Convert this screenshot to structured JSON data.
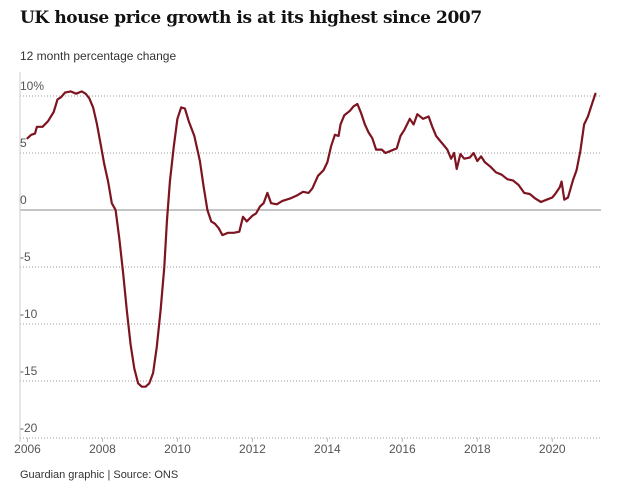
{
  "header": {
    "title": "UK house price growth is at its highest since 2007",
    "subtitle": "12 month percentage change"
  },
  "footer": {
    "source": "Guardian graphic | Source: ONS"
  },
  "chart_data": {
    "type": "line",
    "title": "UK house price growth is at its highest since 2007",
    "ylabel": "12 month percentage change",
    "xlim": [
      2005.8,
      2021.3
    ],
    "ylim": [
      -20,
      10
    ],
    "grid": true,
    "y_ticks": [
      {
        "value": 10,
        "label": "10%"
      },
      {
        "value": 5,
        "label": "5"
      },
      {
        "value": 0,
        "label": "0"
      },
      {
        "value": -5,
        "label": "-5"
      },
      {
        "value": -10,
        "label": "-10"
      },
      {
        "value": -15,
        "label": "-15"
      },
      {
        "value": -20,
        "label": "-20"
      }
    ],
    "x_ticks": [
      {
        "value": 2006,
        "label": "2006"
      },
      {
        "value": 2008,
        "label": "2008"
      },
      {
        "value": 2010,
        "label": "2010"
      },
      {
        "value": 2012,
        "label": "2012"
      },
      {
        "value": 2014,
        "label": "2014"
      },
      {
        "value": 2016,
        "label": "2016"
      },
      {
        "value": 2018,
        "label": "2018"
      },
      {
        "value": 2020,
        "label": "2020"
      }
    ],
    "colors": {
      "line": "#7d1420",
      "grid": "#999999",
      "zero": "#8a8a8a",
      "axis": "#cccccc"
    },
    "series": [
      {
        "points": [
          [
            2006.0,
            6.3
          ],
          [
            2006.1,
            6.6
          ],
          [
            2006.2,
            6.7
          ],
          [
            2006.25,
            7.3
          ],
          [
            2006.4,
            7.3
          ],
          [
            2006.55,
            7.8
          ],
          [
            2006.7,
            8.6
          ],
          [
            2006.8,
            9.7
          ],
          [
            2006.9,
            9.9
          ],
          [
            2007.0,
            10.3
          ],
          [
            2007.15,
            10.4
          ],
          [
            2007.3,
            10.2
          ],
          [
            2007.45,
            10.4
          ],
          [
            2007.55,
            10.2
          ],
          [
            2007.65,
            9.8
          ],
          [
            2007.75,
            9.0
          ],
          [
            2007.85,
            7.6
          ],
          [
            2007.95,
            5.8
          ],
          [
            2008.05,
            4.0
          ],
          [
            2008.15,
            2.5
          ],
          [
            2008.25,
            0.6
          ],
          [
            2008.35,
            0.0
          ],
          [
            2008.45,
            -2.5
          ],
          [
            2008.55,
            -5.5
          ],
          [
            2008.65,
            -8.8
          ],
          [
            2008.75,
            -11.8
          ],
          [
            2008.85,
            -13.9
          ],
          [
            2008.95,
            -15.2
          ],
          [
            2009.05,
            -15.5
          ],
          [
            2009.15,
            -15.5
          ],
          [
            2009.25,
            -15.2
          ],
          [
            2009.35,
            -14.3
          ],
          [
            2009.45,
            -12.0
          ],
          [
            2009.55,
            -8.8
          ],
          [
            2009.65,
            -5.0
          ],
          [
            2009.72,
            -1.0
          ],
          [
            2009.8,
            2.5
          ],
          [
            2009.9,
            5.5
          ],
          [
            2010.0,
            8.0
          ],
          [
            2010.1,
            9.0
          ],
          [
            2010.2,
            8.9
          ],
          [
            2010.3,
            7.8
          ],
          [
            2010.45,
            6.5
          ],
          [
            2010.6,
            4.3
          ],
          [
            2010.7,
            2.0
          ],
          [
            2010.8,
            0.0
          ],
          [
            2010.9,
            -1.0
          ],
          [
            2011.0,
            -1.2
          ],
          [
            2011.1,
            -1.6
          ],
          [
            2011.2,
            -2.2
          ],
          [
            2011.35,
            -2.0
          ],
          [
            2011.5,
            -2.0
          ],
          [
            2011.65,
            -1.9
          ],
          [
            2011.75,
            -0.6
          ],
          [
            2011.85,
            -1.0
          ],
          [
            2012.0,
            -0.5
          ],
          [
            2012.1,
            -0.3
          ],
          [
            2012.2,
            0.3
          ],
          [
            2012.3,
            0.6
          ],
          [
            2012.4,
            1.5
          ],
          [
            2012.5,
            0.6
          ],
          [
            2012.65,
            0.5
          ],
          [
            2012.8,
            0.8
          ],
          [
            2013.0,
            1.0
          ],
          [
            2013.2,
            1.3
          ],
          [
            2013.35,
            1.6
          ],
          [
            2013.5,
            1.5
          ],
          [
            2013.6,
            1.9
          ],
          [
            2013.75,
            3.0
          ],
          [
            2013.9,
            3.5
          ],
          [
            2014.0,
            4.2
          ],
          [
            2014.1,
            5.6
          ],
          [
            2014.2,
            6.6
          ],
          [
            2014.3,
            6.5
          ],
          [
            2014.35,
            7.5
          ],
          [
            2014.45,
            8.3
          ],
          [
            2014.6,
            8.7
          ],
          [
            2014.7,
            9.1
          ],
          [
            2014.8,
            9.3
          ],
          [
            2014.9,
            8.5
          ],
          [
            2015.0,
            7.5
          ],
          [
            2015.1,
            6.8
          ],
          [
            2015.2,
            6.3
          ],
          [
            2015.3,
            5.3
          ],
          [
            2015.45,
            5.3
          ],
          [
            2015.55,
            5.0
          ],
          [
            2015.7,
            5.2
          ],
          [
            2015.85,
            5.4
          ],
          [
            2015.95,
            6.5
          ],
          [
            2016.05,
            7.0
          ],
          [
            2016.2,
            8.0
          ],
          [
            2016.3,
            7.5
          ],
          [
            2016.4,
            8.4
          ],
          [
            2016.55,
            8.0
          ],
          [
            2016.7,
            8.2
          ],
          [
            2016.8,
            7.3
          ],
          [
            2016.9,
            6.5
          ],
          [
            2017.0,
            6.1
          ],
          [
            2017.1,
            5.7
          ],
          [
            2017.2,
            5.3
          ],
          [
            2017.3,
            4.5
          ],
          [
            2017.38,
            5.0
          ],
          [
            2017.45,
            3.6
          ],
          [
            2017.55,
            4.9
          ],
          [
            2017.65,
            4.5
          ],
          [
            2017.8,
            4.6
          ],
          [
            2017.9,
            5.0
          ],
          [
            2018.0,
            4.3
          ],
          [
            2018.1,
            4.7
          ],
          [
            2018.2,
            4.2
          ],
          [
            2018.35,
            3.8
          ],
          [
            2018.5,
            3.3
          ],
          [
            2018.65,
            3.1
          ],
          [
            2018.8,
            2.7
          ],
          [
            2018.95,
            2.6
          ],
          [
            2019.1,
            2.2
          ],
          [
            2019.25,
            1.5
          ],
          [
            2019.4,
            1.4
          ],
          [
            2019.55,
            1.0
          ],
          [
            2019.7,
            0.7
          ],
          [
            2019.85,
            0.9
          ],
          [
            2020.0,
            1.1
          ],
          [
            2020.1,
            1.5
          ],
          [
            2020.2,
            2.0
          ],
          [
            2020.25,
            2.5
          ],
          [
            2020.32,
            0.9
          ],
          [
            2020.42,
            1.1
          ],
          [
            2020.55,
            2.6
          ],
          [
            2020.65,
            3.5
          ],
          [
            2020.75,
            5.2
          ],
          [
            2020.85,
            7.5
          ],
          [
            2020.95,
            8.2
          ],
          [
            2021.05,
            9.2
          ],
          [
            2021.15,
            10.2
          ]
        ]
      }
    ]
  }
}
